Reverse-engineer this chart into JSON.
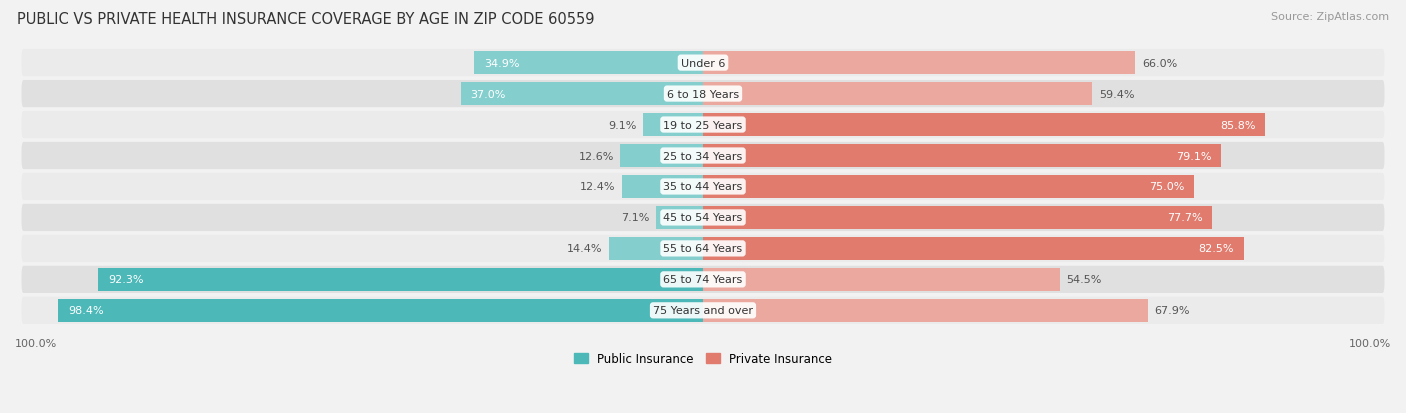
{
  "title": "PUBLIC VS PRIVATE HEALTH INSURANCE COVERAGE BY AGE IN ZIP CODE 60559",
  "source": "Source: ZipAtlas.com",
  "categories": [
    "Under 6",
    "6 to 18 Years",
    "19 to 25 Years",
    "25 to 34 Years",
    "35 to 44 Years",
    "45 to 54 Years",
    "55 to 64 Years",
    "65 to 74 Years",
    "75 Years and over"
  ],
  "public": [
    34.9,
    37.0,
    9.1,
    12.6,
    12.4,
    7.1,
    14.4,
    92.3,
    98.4
  ],
  "private": [
    66.0,
    59.4,
    85.8,
    79.1,
    75.0,
    77.7,
    82.5,
    54.5,
    67.9
  ],
  "public_color": "#4cb8b8",
  "private_color": "#e07b6e",
  "public_color_light": "#85cece",
  "private_color_light": "#eba89f",
  "bg_color": "#f2f2f2",
  "row_bg_even": "#ebebeb",
  "row_bg_odd": "#e0e0e0",
  "title_fontsize": 10.5,
  "label_fontsize": 8.0,
  "source_fontsize": 8,
  "legend_fontsize": 8.5,
  "axis_label_fontsize": 8,
  "cat_label_fontsize": 8.0
}
